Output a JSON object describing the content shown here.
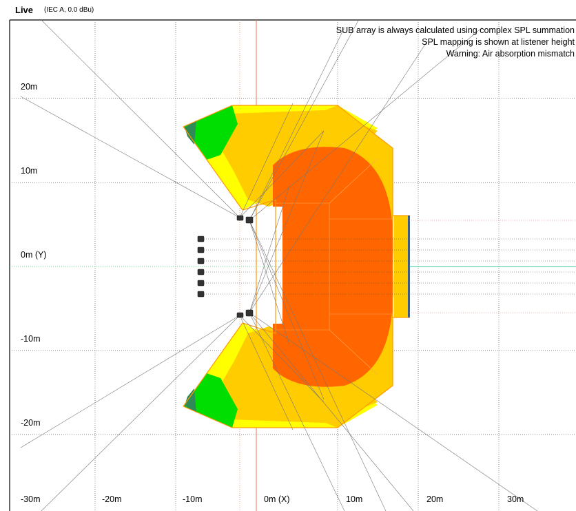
{
  "header": {
    "title": "Live",
    "subtitle": "(IEC A, 0.0 dBu)"
  },
  "notes": [
    "SUB array is always calculated using complex SPL summation",
    "SPL mapping is shown at listener height",
    "Warning: Air absorption mismatch"
  ],
  "axes": {
    "y_labels": [
      "20m",
      "10m",
      "0m (Y)",
      "-10m",
      "-20m"
    ],
    "x_labels": [
      "-30m",
      "-20m",
      "-10m",
      "0m (X)",
      "10m",
      "20m",
      "30m"
    ]
  },
  "colors": {
    "zone_red": "#ff6600",
    "zone_orange": "#ffcc00",
    "zone_yellow": "#ffff00",
    "zone_green": "#00dd00",
    "zone_teal": "#2e8b57",
    "outline": "#ff9900"
  }
}
